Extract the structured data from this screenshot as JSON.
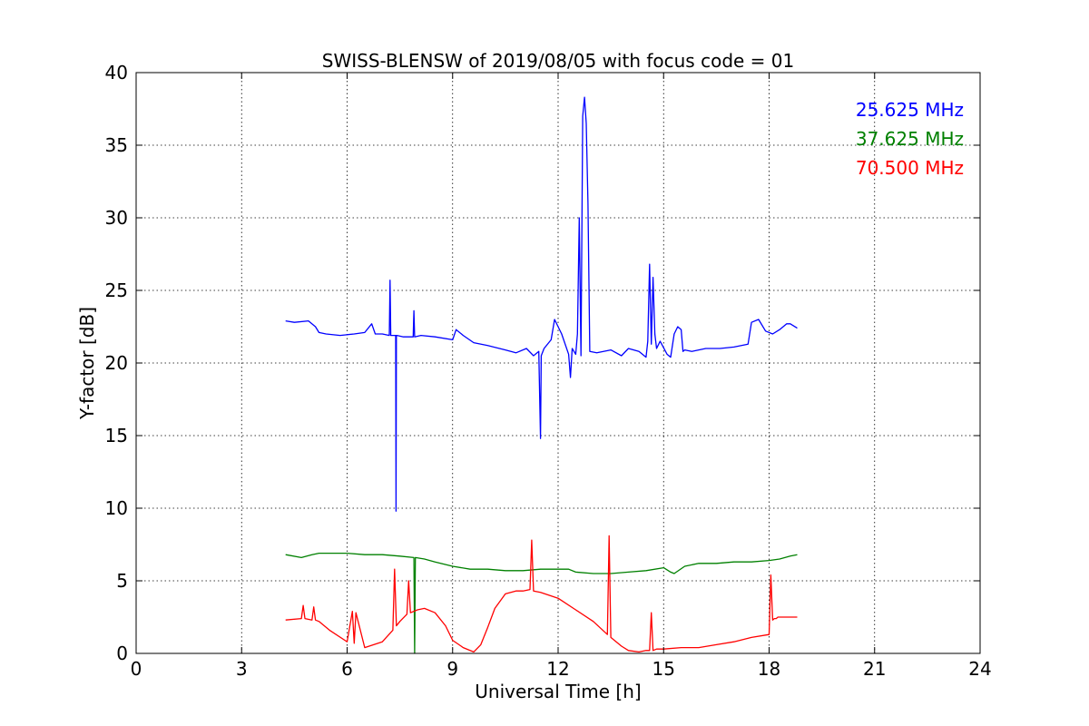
{
  "chart_data": {
    "type": "line",
    "title": "SWISS-BLENSW of 2019/08/05 with focus code = 01",
    "xlabel": "Universal Time [h]",
    "ylabel": "Y-factor [dB]",
    "xlim": [
      0,
      24
    ],
    "ylim": [
      0,
      40
    ],
    "xticks": [
      0,
      3,
      6,
      9,
      12,
      15,
      18,
      21,
      24
    ],
    "yticks": [
      0,
      5,
      10,
      15,
      20,
      25,
      30,
      35,
      40
    ],
    "xtick_labels": [
      "0",
      "3",
      "6",
      "9",
      "12",
      "15",
      "18",
      "21",
      "24"
    ],
    "ytick_labels": [
      "0",
      "5",
      "10",
      "15",
      "20",
      "25",
      "30",
      "35",
      "40"
    ],
    "grid": true,
    "legend_position": "top-right",
    "series": [
      {
        "name": "25.625 MHz",
        "color": "#0000ff",
        "x": [
          4.25,
          4.5,
          4.9,
          5.1,
          5.2,
          5.4,
          5.8,
          6.2,
          6.5,
          6.7,
          6.8,
          7.0,
          7.2,
          7.22,
          7.24,
          7.3,
          7.38,
          7.39,
          7.4,
          7.42,
          7.6,
          7.88,
          7.9,
          7.92,
          8.1,
          8.5,
          9.0,
          9.1,
          9.3,
          9.6,
          10.0,
          10.5,
          10.8,
          11.1,
          11.3,
          11.45,
          11.5,
          11.52,
          11.6,
          11.8,
          11.9,
          12.1,
          12.3,
          12.35,
          12.4,
          12.5,
          12.55,
          12.6,
          12.65,
          12.7,
          12.75,
          12.8,
          12.85,
          12.9,
          13.1,
          13.5,
          13.8,
          14.0,
          14.3,
          14.5,
          14.55,
          14.6,
          14.65,
          14.7,
          14.75,
          14.8,
          14.9,
          15.1,
          15.2,
          15.3,
          15.4,
          15.5,
          15.55,
          15.6,
          15.8,
          16.2,
          16.6,
          17.0,
          17.4,
          17.5,
          17.7,
          17.9,
          18.1,
          18.3,
          18.5,
          18.6,
          18.8
        ],
        "y": [
          22.9,
          22.8,
          22.9,
          22.5,
          22.1,
          22.0,
          21.9,
          22.0,
          22.1,
          22.7,
          22.0,
          22.0,
          21.9,
          25.7,
          21.9,
          21.9,
          21.9,
          9.8,
          21.9,
          21.9,
          21.8,
          21.8,
          23.6,
          21.8,
          21.9,
          21.8,
          21.6,
          22.3,
          21.9,
          21.4,
          21.2,
          20.9,
          20.7,
          21.0,
          20.5,
          20.8,
          14.8,
          20.5,
          21.0,
          21.6,
          23.0,
          22.0,
          20.6,
          19.0,
          21.0,
          20.6,
          22.0,
          30.0,
          20.5,
          37.0,
          38.3,
          36.5,
          31.0,
          20.8,
          20.7,
          20.9,
          20.5,
          21.0,
          20.8,
          20.4,
          21.5,
          26.8,
          21.3,
          25.9,
          22.0,
          21.0,
          21.5,
          20.6,
          20.4,
          22.0,
          22.5,
          22.3,
          20.8,
          20.9,
          20.8,
          21.0,
          21.0,
          21.1,
          21.3,
          22.8,
          23.0,
          22.2,
          22.0,
          22.3,
          22.7,
          22.7,
          22.4
        ]
      },
      {
        "name": "37.625 MHz",
        "color": "#008000",
        "x": [
          4.25,
          4.7,
          5.0,
          5.2,
          5.5,
          6.0,
          6.5,
          7.0,
          7.5,
          7.9,
          7.92,
          7.94,
          8.2,
          8.5,
          9.0,
          9.5,
          10.0,
          10.5,
          11.0,
          11.5,
          12.0,
          12.3,
          12.5,
          13.0,
          13.5,
          14.0,
          14.5,
          15.0,
          15.2,
          15.3,
          15.6,
          16.0,
          16.5,
          17.0,
          17.5,
          18.0,
          18.3,
          18.6,
          18.8
        ],
        "y": [
          6.8,
          6.6,
          6.8,
          6.9,
          6.9,
          6.9,
          6.8,
          6.8,
          6.7,
          6.6,
          0.0,
          6.6,
          6.5,
          6.3,
          6.0,
          5.8,
          5.8,
          5.7,
          5.7,
          5.8,
          5.8,
          5.8,
          5.6,
          5.5,
          5.5,
          5.6,
          5.7,
          5.9,
          5.6,
          5.5,
          6.0,
          6.2,
          6.2,
          6.3,
          6.3,
          6.4,
          6.5,
          6.7,
          6.8
        ]
      },
      {
        "name": "70.500 MHz",
        "color": "#ff0000",
        "x": [
          4.25,
          4.7,
          4.75,
          4.8,
          5.0,
          5.05,
          5.1,
          5.2,
          5.5,
          6.0,
          6.15,
          6.2,
          6.25,
          6.5,
          7.0,
          7.3,
          7.35,
          7.4,
          7.5,
          7.7,
          7.75,
          7.8,
          8.0,
          8.2,
          8.5,
          8.8,
          9.0,
          9.3,
          9.6,
          9.8,
          10.0,
          10.2,
          10.5,
          10.8,
          11.0,
          11.2,
          11.25,
          11.3,
          11.5,
          12.0,
          12.5,
          13.0,
          13.4,
          13.45,
          13.5,
          13.8,
          14.0,
          14.3,
          14.5,
          14.6,
          14.65,
          14.7,
          14.8,
          15.0,
          15.5,
          16.0,
          16.5,
          17.0,
          17.5,
          18.0,
          18.05,
          18.1,
          18.15,
          18.2,
          18.25,
          18.5,
          18.8
        ],
        "y": [
          2.3,
          2.4,
          3.3,
          2.4,
          2.3,
          3.2,
          2.3,
          2.2,
          1.6,
          0.8,
          2.9,
          0.7,
          2.8,
          0.4,
          0.8,
          1.6,
          5.8,
          1.9,
          2.2,
          2.7,
          5.0,
          2.8,
          3.0,
          3.1,
          2.8,
          1.9,
          0.9,
          0.4,
          0.1,
          0.6,
          1.8,
          3.1,
          4.1,
          4.3,
          4.3,
          4.4,
          7.8,
          4.3,
          4.2,
          3.8,
          3.0,
          2.2,
          1.3,
          8.1,
          1.1,
          0.5,
          0.2,
          0.1,
          0.2,
          0.2,
          2.8,
          0.2,
          0.3,
          0.3,
          0.4,
          0.4,
          0.6,
          0.8,
          1.1,
          1.3,
          5.4,
          2.3,
          2.4,
          2.4,
          2.5,
          2.5,
          2.5
        ]
      }
    ]
  }
}
